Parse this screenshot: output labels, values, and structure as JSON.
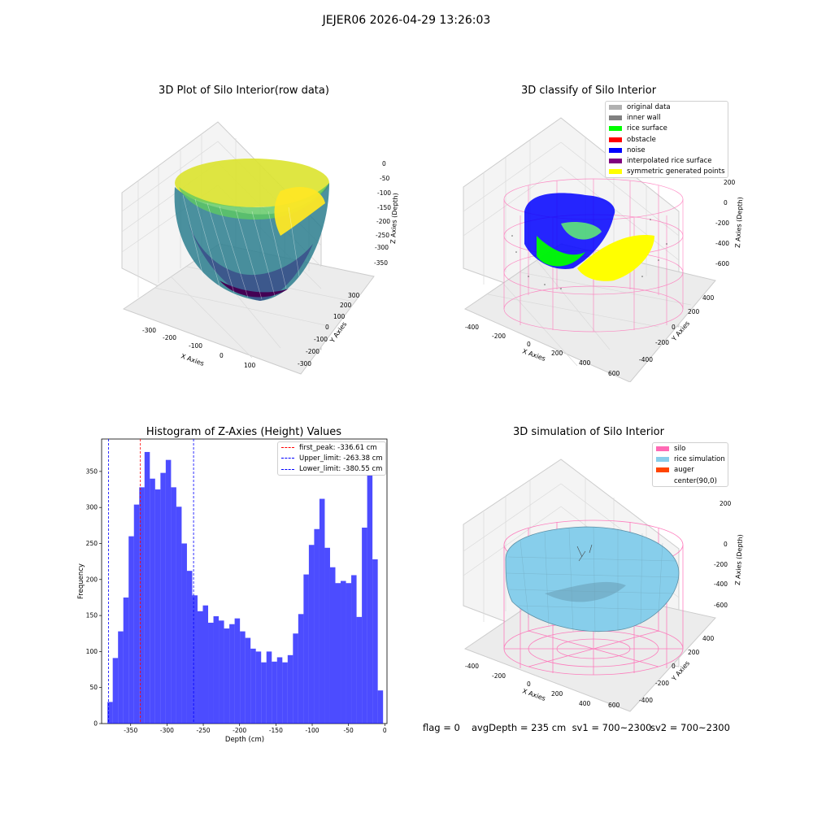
{
  "suptitle": "JEJER06 2026-04-29 13:26:03",
  "panels": {
    "raw": {
      "title": "3D Plot of Silo Interior(row data)",
      "xlabel": "X Axies",
      "ylabel": "Y Axies",
      "zlabel": "Z Axies (Depth)",
      "xticks": [
        "-300",
        "-200",
        "-100",
        "0",
        "100"
      ],
      "yticks": [
        "-300",
        "-200",
        "-100",
        "0",
        "100",
        "200",
        "300"
      ],
      "zticks": [
        "0",
        "-50",
        "-100",
        "-150",
        "-200",
        "-250",
        "-300",
        "-350"
      ],
      "colormap": "viridis"
    },
    "classify": {
      "title": "3D classify of Silo Interior",
      "xlabel": "X Axies",
      "ylabel": "Y Axies",
      "zlabel": "Z Axies (Depth)",
      "xticks": [
        "-400",
        "-200",
        "0",
        "200",
        "400",
        "600"
      ],
      "yticks": [
        "-400",
        "-200",
        "0",
        "200",
        "400"
      ],
      "zticks": [
        "200",
        "0",
        "-200",
        "-400",
        "-600"
      ],
      "legend": [
        {
          "label": "original data",
          "color": "#b0b0b0"
        },
        {
          "label": "inner wall",
          "color": "#808080"
        },
        {
          "label": "rice surface",
          "color": "#00ff00"
        },
        {
          "label": "obstacle",
          "color": "#ff0000"
        },
        {
          "label": "noise",
          "color": "#0000ff"
        },
        {
          "label": "interpolated rice surface",
          "color": "#800080"
        },
        {
          "label": "symmetric generated points",
          "color": "#ffff00"
        }
      ]
    },
    "simulation": {
      "title": "3D simulation of Silo Interior",
      "xlabel": "X Axies",
      "ylabel": "Y Axies",
      "zlabel": "Z Axies (Depth)",
      "xticks": [
        "-400",
        "-200",
        "0",
        "200",
        "400",
        "600"
      ],
      "yticks": [
        "-400",
        "-200",
        "0",
        "200",
        "400"
      ],
      "zticks": [
        "200",
        "0",
        "-200",
        "-400",
        "-600"
      ],
      "legend": [
        {
          "label": "silo",
          "color": "#ff69b4"
        },
        {
          "label": "rice simulation",
          "color": "#87ceeb"
        },
        {
          "label": "auger",
          "color": "#ff4500"
        },
        {
          "label": "center(90,0)",
          "color": "#ffffff"
        }
      ]
    }
  },
  "chart_data": [
    {
      "type": "bar",
      "title": "Histogram of Z-Axies (Height) Values",
      "xlabel": "Depth (cm)",
      "ylabel": "Frequency",
      "bin_start": -382,
      "bin_width": 7.3,
      "values": [
        30,
        91,
        128,
        175,
        260,
        304,
        328,
        377,
        340,
        325,
        348,
        366,
        328,
        301,
        250,
        212,
        178,
        156,
        164,
        140,
        149,
        143,
        132,
        138,
        146,
        128,
        119,
        104,
        100,
        85,
        100,
        86,
        92,
        85,
        95,
        125,
        152,
        207,
        248,
        270,
        312,
        244,
        217,
        195,
        198,
        195,
        206,
        148,
        272,
        345,
        228,
        46
      ],
      "xlim": [
        -390,
        3
      ],
      "ylim": [
        0,
        395
      ],
      "xticks": [
        -350,
        -300,
        -250,
        -200,
        -150,
        -100,
        -50,
        0
      ],
      "yticks": [
        0,
        50,
        100,
        150,
        200,
        250,
        300,
        350
      ],
      "bar_color": "#0000ff",
      "vlines": [
        {
          "label": "first_peak: -336.61 cm",
          "x": -336.61,
          "color": "#ff0000"
        },
        {
          "label": "Upper_limit: -263.38 cm",
          "x": -263.38,
          "color": "#0000ff"
        },
        {
          "label": "Lower_limit: -380.55 cm",
          "x": -380.55,
          "color": "#0000ff"
        }
      ],
      "legend_position": "top-right"
    }
  ],
  "status": {
    "flag": "flag = 0",
    "avg": "avgDepth = 235 cm  sv1 = 700~2300",
    "sv2": "sv2 = 700~2300"
  }
}
